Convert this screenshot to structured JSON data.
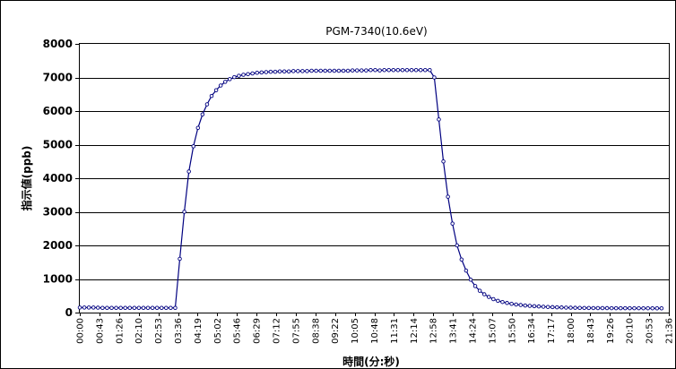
{
  "chart_data": {
    "type": "line",
    "title": "PGM-7340(10.6eV)",
    "xlabel": "時間(分:秒)",
    "ylabel": "指示値(ppb)",
    "ylim": [
      0,
      8000
    ],
    "yticks": [
      "0",
      "1000",
      "2000",
      "3000",
      "4000",
      "5000",
      "6000",
      "7000",
      "8000"
    ],
    "xticks": [
      "00:00",
      "00:43",
      "01:26",
      "02:10",
      "02:53",
      "03:36",
      "04:19",
      "05:02",
      "05:46",
      "06:29",
      "07:12",
      "07:55",
      "08:38",
      "09:22",
      "10:05",
      "10:48",
      "11:31",
      "12:14",
      "12:58",
      "13:41",
      "14:24",
      "15:07",
      "15:50",
      "16:34",
      "17:17",
      "18:00",
      "18:43",
      "19:26",
      "20:10",
      "20:53",
      "21:36"
    ],
    "x_range_seconds": [
      0,
      1296
    ],
    "grid": true,
    "legend": "none",
    "series": [
      {
        "color": "#000080",
        "marker_interval_seconds": 10,
        "points": [
          [
            0,
            150
          ],
          [
            10,
            150
          ],
          [
            20,
            150
          ],
          [
            30,
            150
          ],
          [
            40,
            145
          ],
          [
            50,
            140
          ],
          [
            60,
            140
          ],
          [
            70,
            140
          ],
          [
            80,
            140
          ],
          [
            90,
            140
          ],
          [
            100,
            140
          ],
          [
            110,
            140
          ],
          [
            120,
            140
          ],
          [
            130,
            140
          ],
          [
            140,
            140
          ],
          [
            150,
            140
          ],
          [
            160,
            140
          ],
          [
            170,
            140
          ],
          [
            180,
            140
          ],
          [
            190,
            140
          ],
          [
            200,
            140
          ],
          [
            210,
            140
          ],
          [
            220,
            1600
          ],
          [
            230,
            3000
          ],
          [
            240,
            4200
          ],
          [
            250,
            4950
          ],
          [
            260,
            5500
          ],
          [
            270,
            5900
          ],
          [
            280,
            6200
          ],
          [
            290,
            6450
          ],
          [
            300,
            6620
          ],
          [
            310,
            6760
          ],
          [
            320,
            6870
          ],
          [
            330,
            6950
          ],
          [
            340,
            7010
          ],
          [
            350,
            7050
          ],
          [
            360,
            7080
          ],
          [
            370,
            7100
          ],
          [
            380,
            7120
          ],
          [
            390,
            7140
          ],
          [
            400,
            7150
          ],
          [
            410,
            7160
          ],
          [
            420,
            7170
          ],
          [
            430,
            7170
          ],
          [
            440,
            7180
          ],
          [
            450,
            7180
          ],
          [
            460,
            7180
          ],
          [
            470,
            7190
          ],
          [
            480,
            7190
          ],
          [
            490,
            7190
          ],
          [
            500,
            7190
          ],
          [
            510,
            7200
          ],
          [
            520,
            7200
          ],
          [
            530,
            7200
          ],
          [
            540,
            7200
          ],
          [
            550,
            7200
          ],
          [
            560,
            7200
          ],
          [
            570,
            7200
          ],
          [
            580,
            7200
          ],
          [
            590,
            7200
          ],
          [
            600,
            7210
          ],
          [
            610,
            7210
          ],
          [
            620,
            7210
          ],
          [
            630,
            7210
          ],
          [
            640,
            7220
          ],
          [
            650,
            7220
          ],
          [
            660,
            7210
          ],
          [
            670,
            7220
          ],
          [
            680,
            7220
          ],
          [
            690,
            7220
          ],
          [
            700,
            7220
          ],
          [
            710,
            7220
          ],
          [
            720,
            7220
          ],
          [
            730,
            7220
          ],
          [
            740,
            7220
          ],
          [
            750,
            7220
          ],
          [
            760,
            7220
          ],
          [
            770,
            7220
          ],
          [
            780,
            7000
          ],
          [
            790,
            5750
          ],
          [
            800,
            4500
          ],
          [
            810,
            3450
          ],
          [
            820,
            2650
          ],
          [
            830,
            2000
          ],
          [
            840,
            1580
          ],
          [
            850,
            1250
          ],
          [
            860,
            980
          ],
          [
            870,
            790
          ],
          [
            880,
            650
          ],
          [
            890,
            545
          ],
          [
            900,
            465
          ],
          [
            910,
            400
          ],
          [
            920,
            350
          ],
          [
            930,
            315
          ],
          [
            940,
            285
          ],
          [
            950,
            260
          ],
          [
            960,
            240
          ],
          [
            970,
            225
          ],
          [
            980,
            210
          ],
          [
            990,
            200
          ],
          [
            1000,
            190
          ],
          [
            1010,
            182
          ],
          [
            1020,
            175
          ],
          [
            1030,
            168
          ],
          [
            1040,
            162
          ],
          [
            1050,
            157
          ],
          [
            1060,
            152
          ],
          [
            1070,
            148
          ],
          [
            1080,
            145
          ],
          [
            1090,
            142
          ],
          [
            1100,
            140
          ],
          [
            1110,
            138
          ],
          [
            1120,
            137
          ],
          [
            1130,
            135
          ],
          [
            1140,
            134
          ],
          [
            1150,
            133
          ],
          [
            1160,
            132
          ],
          [
            1170,
            131
          ],
          [
            1180,
            130
          ],
          [
            1190,
            130
          ],
          [
            1200,
            130
          ],
          [
            1210,
            130
          ],
          [
            1220,
            129
          ],
          [
            1230,
            129
          ],
          [
            1240,
            128
          ],
          [
            1250,
            128
          ],
          [
            1260,
            128
          ],
          [
            1270,
            127
          ],
          [
            1280,
            127
          ]
        ]
      }
    ]
  }
}
